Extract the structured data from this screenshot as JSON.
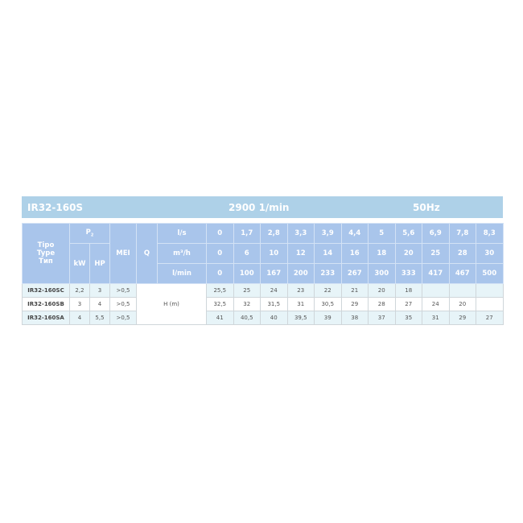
{
  "title": {
    "model": "IR32-160S",
    "speed": "2900 1/min",
    "frequency": "50Hz"
  },
  "header": {
    "type_label": [
      "Tipo",
      "Type",
      "Тип"
    ],
    "power_label": "P",
    "power_sub": "2",
    "kw": "kW",
    "hp": "HP",
    "mei": "MEI",
    "q": "Q",
    "units": [
      "l/s",
      "m³/h",
      "l/min"
    ],
    "flow_ls": [
      "0",
      "1,7",
      "2,8",
      "3,3",
      "3,9",
      "4,4",
      "5",
      "5,6",
      "6,9",
      "7,8",
      "8,3"
    ],
    "flow_m3h": [
      "0",
      "6",
      "10",
      "12",
      "14",
      "16",
      "18",
      "20",
      "25",
      "28",
      "30"
    ],
    "flow_lmin": [
      "0",
      "100",
      "167",
      "200",
      "233",
      "267",
      "300",
      "333",
      "417",
      "467",
      "500"
    ]
  },
  "head_label": "H (m)",
  "rows": [
    {
      "model": "IR32-160SC",
      "kw": "2,2",
      "hp": "3",
      "mei": ">0,5",
      "h": [
        "25,5",
        "25",
        "24",
        "23",
        "22",
        "21",
        "20",
        "18",
        "",
        "",
        ""
      ]
    },
    {
      "model": "IR32-160SB",
      "kw": "3",
      "hp": "4",
      "mei": ">0,5",
      "h": [
        "32,5",
        "32",
        "31,5",
        "31",
        "30,5",
        "29",
        "28",
        "27",
        "24",
        "20",
        ""
      ]
    },
    {
      "model": "IR32-160SA",
      "kw": "4",
      "hp": "5,5",
      "mei": ">0,5",
      "h": [
        "41",
        "40,5",
        "40",
        "39,5",
        "39",
        "38",
        "37",
        "35",
        "31",
        "29",
        "27"
      ]
    }
  ]
}
